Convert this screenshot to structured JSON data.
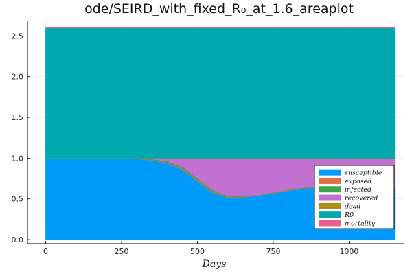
{
  "chart_data": {
    "type": "area",
    "stacked": true,
    "title": "ode/SEIRD_with_fixed_R₀_at_1.6_areaplot",
    "xlabel": "Days",
    "ylabel": "",
    "xlim": [
      -60,
      1180
    ],
    "ylim": [
      -0.05,
      2.68
    ],
    "xticks": [
      0,
      250,
      500,
      750,
      1000
    ],
    "xtick_labels": [
      "0",
      "250",
      "500",
      "750",
      "1000"
    ],
    "yticks": [
      0.0,
      0.5,
      1.0,
      1.5,
      2.0,
      2.5
    ],
    "ytick_labels": [
      "0.0",
      "0.5",
      "1.0",
      "1.5",
      "2.0",
      "2.5"
    ],
    "grid": true,
    "legend_position": "bottom-right",
    "x": [
      0,
      100,
      200,
      300,
      350,
      400,
      450,
      500,
      550,
      600,
      650,
      700,
      750,
      800,
      850,
      900,
      950,
      1000,
      1050,
      1100,
      1150
    ],
    "series": [
      {
        "name": "susceptible",
        "color": "#009AFA",
        "values": [
          0.999,
          0.999,
          0.998,
          0.99,
          0.975,
          0.94,
          0.86,
          0.72,
          0.58,
          0.52,
          0.52,
          0.54,
          0.57,
          0.6,
          0.625,
          0.645,
          0.66,
          0.67,
          0.655,
          0.635,
          0.61
        ]
      },
      {
        "name": "exposed",
        "color": "#E36F47",
        "values": [
          0.0005,
          0.0005,
          0.001,
          0.003,
          0.006,
          0.01,
          0.013,
          0.014,
          0.012,
          0.008,
          0.005,
          0.004,
          0.004,
          0.005,
          0.006,
          0.006,
          0.006,
          0.006,
          0.006,
          0.006,
          0.006
        ]
      },
      {
        "name": "infected",
        "color": "#3EA44E",
        "values": [
          0.0005,
          0.0005,
          0.001,
          0.004,
          0.008,
          0.014,
          0.019,
          0.021,
          0.018,
          0.012,
          0.008,
          0.007,
          0.007,
          0.008,
          0.009,
          0.01,
          0.01,
          0.01,
          0.01,
          0.01,
          0.01
        ]
      },
      {
        "name": "recovered",
        "color": "#C271D2",
        "values": [
          0.0,
          0.0,
          0.0,
          0.003,
          0.011,
          0.036,
          0.108,
          0.245,
          0.39,
          0.46,
          0.467,
          0.449,
          0.419,
          0.387,
          0.36,
          0.339,
          0.324,
          0.314,
          0.329,
          0.349,
          0.374
        ]
      },
      {
        "name": "dead",
        "color": "#AC8D18",
        "values": [
          0.0,
          0.0,
          0.0,
          0.0,
          0.0,
          0.0,
          0.0,
          0.0,
          0.0,
          0.0,
          0.0,
          0.0,
          0.0,
          0.0,
          0.0,
          0.0,
          0.0,
          0.0,
          0.0,
          0.0,
          0.0
        ]
      },
      {
        "name": "R0",
        "color": "#00A9AD",
        "values": [
          1.6,
          1.6,
          1.6,
          1.6,
          1.6,
          1.6,
          1.6,
          1.6,
          1.6,
          1.6,
          1.6,
          1.6,
          1.6,
          1.6,
          1.6,
          1.6,
          1.6,
          1.6,
          1.6,
          1.6,
          1.6
        ]
      },
      {
        "name": "mortality",
        "color": "#ED5D92",
        "values": [
          0.0,
          0.0,
          0.0,
          0.0,
          0.0,
          0.0,
          0.0,
          0.0,
          0.0,
          0.0,
          0.0,
          0.0,
          0.0,
          0.0,
          0.0,
          0.0,
          0.0,
          0.0,
          0.0,
          0.0,
          0.0
        ]
      }
    ]
  }
}
